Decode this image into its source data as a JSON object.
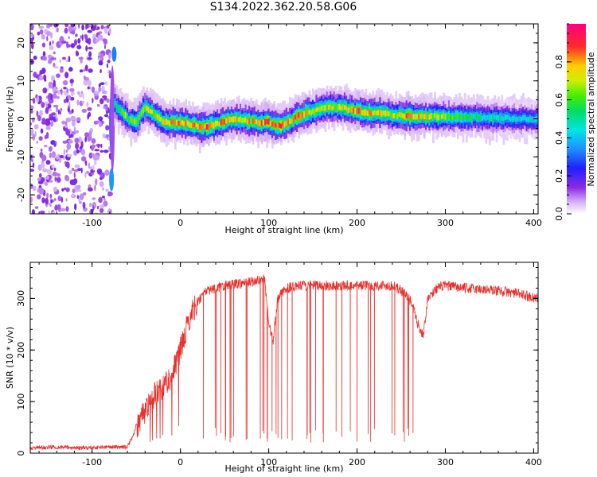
{
  "title": "S134.2022.362.20.58.G06",
  "colors": {
    "signal": "#e8302b",
    "frame": "#000000"
  },
  "chart_data": [
    {
      "type": "heatmap",
      "title": "S134.2022.362.20.58.G06",
      "xlabel": "Height of straight line (km)",
      "ylabel": "Frequency (Hz)",
      "xlim": [
        -170,
        405
      ],
      "ylim": [
        -25,
        25
      ],
      "x_ticks": [
        -100,
        0,
        100,
        200,
        300,
        400
      ],
      "y_ticks": [
        -20,
        -10,
        0,
        10,
        20
      ],
      "colorbar": {
        "label": "Normalized spectral amplitude",
        "range": [
          0,
          1
        ],
        "ticks": [
          0.0,
          0.2,
          0.4,
          0.6,
          0.8
        ],
        "colormap": "white-purple-blue-cyan-green-yellow-red-magenta"
      },
      "ridge": {
        "x": [
          -75,
          -68,
          -60,
          -50,
          -42,
          -35,
          -25,
          -15,
          0,
          20,
          30,
          45,
          60,
          75,
          90,
          100,
          110,
          120,
          135,
          150,
          165,
          180,
          200,
          220,
          240,
          260,
          280,
          300,
          320,
          340,
          360,
          380,
          405
        ],
        "frequency_hz": [
          4,
          2,
          0,
          -1,
          3,
          2,
          0,
          -1,
          -1,
          -2,
          -2,
          -1,
          0,
          -0.5,
          -1,
          -1,
          -2,
          -1,
          1,
          2,
          3,
          3,
          2,
          1.5,
          1,
          0.8,
          0.7,
          0.5,
          0.4,
          0.3,
          0.2,
          0.1,
          0
        ],
        "peak_amplitude": [
          0.5,
          0.6,
          0.65,
          0.7,
          0.75,
          0.7,
          0.8,
          0.75,
          0.85,
          0.85,
          0.85,
          0.8,
          0.85,
          0.75,
          0.8,
          0.85,
          0.85,
          0.8,
          0.8,
          0.75,
          0.7,
          0.7,
          0.8,
          0.75,
          0.7,
          0.85,
          0.7,
          0.6,
          0.55,
          0.5,
          0.5,
          0.45,
          0.45
        ]
      },
      "noise_region_x": [
        -170,
        -75
      ]
    },
    {
      "type": "line",
      "xlabel": "Height of straight line (km)",
      "ylabel": "SNR (10 * v/v)",
      "xlim": [
        -170,
        405
      ],
      "ylim": [
        0,
        370
      ],
      "x_ticks": [
        -100,
        0,
        100,
        200,
        300,
        400
      ],
      "y_ticks": [
        0,
        100,
        200,
        300
      ],
      "series": [
        {
          "x": [
            -170,
            -140,
            -110,
            -80,
            -60,
            -52,
            -45,
            -38,
            -30,
            -20,
            -12,
            -5,
            0,
            5,
            10,
            15,
            20,
            25,
            30,
            40,
            50,
            60,
            70,
            80,
            90,
            95,
            100,
            105,
            110,
            120,
            140,
            160,
            180,
            200,
            220,
            240,
            255,
            262,
            270,
            275,
            280,
            290,
            300,
            320,
            340,
            360,
            380,
            405
          ],
          "y": [
            10,
            12,
            10,
            12,
            12,
            40,
            70,
            90,
            110,
            130,
            145,
            175,
            200,
            230,
            260,
            280,
            295,
            305,
            315,
            320,
            325,
            328,
            330,
            332,
            335,
            340,
            250,
            215,
            300,
            320,
            325,
            325,
            325,
            325,
            325,
            325,
            310,
            290,
            245,
            230,
            300,
            320,
            325,
            320,
            318,
            315,
            310,
            300
          ],
          "dropouts": {
            "x_range": [
              10,
              265
            ],
            "floor_snr": [
              20,
              50
            ]
          }
        }
      ]
    }
  ]
}
